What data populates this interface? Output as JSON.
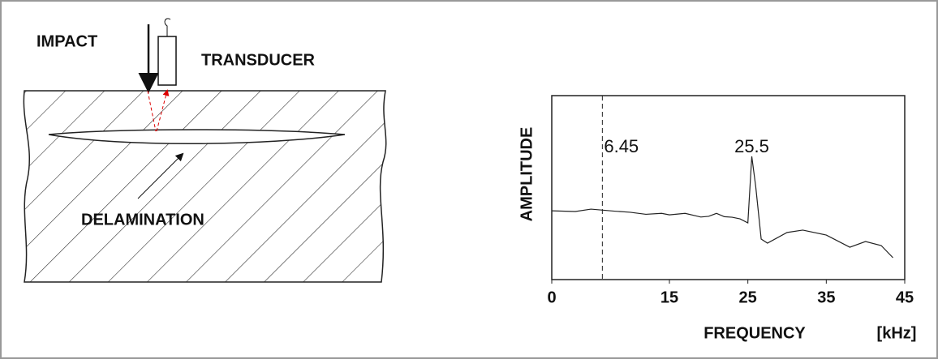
{
  "diagram": {
    "labels": {
      "impact": "IMPACT",
      "transducer": "TRANSDUCER",
      "delamination": "DELAMINATION"
    }
  },
  "chart_data": {
    "type": "line",
    "x_label": "FREQUENCY",
    "x_unit": "[kHz]",
    "y_label": "AMPLITUDE",
    "xlim": [
      0,
      45
    ],
    "xticks": [
      0,
      15,
      25,
      35,
      45
    ],
    "ylim": [
      0,
      10
    ],
    "series": [
      {
        "color": "#222",
        "x": [
          0,
          3,
          5,
          8,
          10,
          12,
          14,
          15,
          17,
          19,
          20,
          21,
          22,
          23,
          24,
          25,
          25.5,
          26,
          26.7,
          27.5,
          30,
          32,
          35,
          38,
          40,
          42,
          43.5
        ],
        "values": [
          3.74,
          3.7,
          3.83,
          3.72,
          3.66,
          3.55,
          3.6,
          3.52,
          3.6,
          3.4,
          3.44,
          3.6,
          3.42,
          3.39,
          3.3,
          3.08,
          6.7,
          5.07,
          2.2,
          1.98,
          2.56,
          2.69,
          2.42,
          1.76,
          2.07,
          1.85,
          1.19
        ]
      }
    ],
    "annotations": [
      {
        "text": "6.45",
        "x": 6.45
      },
      {
        "text": "25.5",
        "x": 25.5
      }
    ]
  }
}
